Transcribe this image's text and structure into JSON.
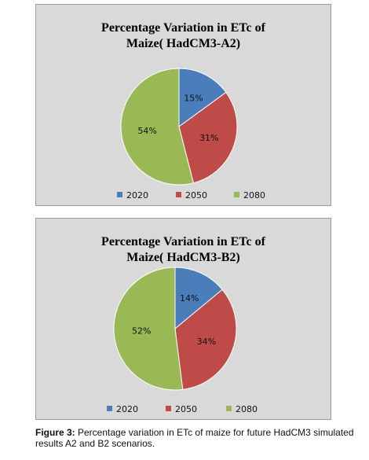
{
  "chart_data": [
    {
      "type": "pie",
      "title_line1": "Percentage Variation in ETc of",
      "title_line2": "Maize( HadCM3-A2)",
      "categories": [
        "2020",
        "2050",
        "2080"
      ],
      "values": [
        15,
        31,
        54
      ],
      "data_labels": [
        "15%",
        "31%",
        "54%"
      ],
      "colors": [
        "#4a7ebb",
        "#be4b48",
        "#98b954"
      ],
      "legend_position": "bottom"
    },
    {
      "type": "pie",
      "title_line1": "Percentage Variation in ETc of",
      "title_line2": "Maize( HadCM3-B2)",
      "categories": [
        "2020",
        "2050",
        "2080"
      ],
      "values": [
        14,
        34,
        52
      ],
      "data_labels": [
        "14%",
        "34%",
        "52%"
      ],
      "colors": [
        "#4a7ebb",
        "#be4b48",
        "#98b954"
      ],
      "legend_position": "bottom"
    }
  ],
  "caption": {
    "prefix": "Figure 3:",
    "text": " Percentage variation in ETc of maize for future HadCM3 simulated results A2 and B2 scenarios."
  }
}
